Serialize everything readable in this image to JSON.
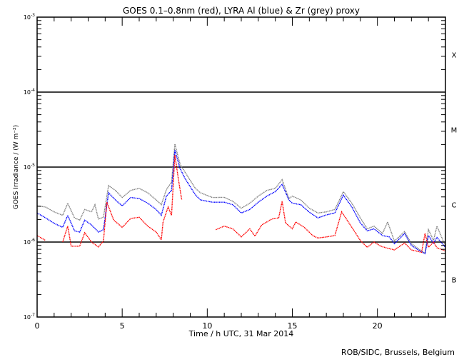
{
  "chart_data": {
    "type": "line",
    "title": "GOES 0.1–0.8nm (red), LYRA Al (blue) & Zr (grey) proxy",
    "xlabel": "Time / h UTC, 31 Mar 2014",
    "ylabel": "GOES Irradiance / (W m⁻²)",
    "xlim": [
      0,
      24
    ],
    "ylim": [
      1e-07,
      0.001
    ],
    "yscale": "log",
    "x_ticks": [
      "0",
      "5",
      "10",
      "15",
      "20"
    ],
    "x_tick_values": [
      0,
      5,
      10,
      15,
      20
    ],
    "y_ticks": [
      {
        "value": 0.001,
        "base": "10",
        "exp": "-3"
      },
      {
        "value": 0.0001,
        "base": "10",
        "exp": "-4"
      },
      {
        "value": 1e-05,
        "base": "10",
        "exp": "-5"
      },
      {
        "value": 1e-06,
        "base": "10",
        "exp": "-6"
      },
      {
        "value": 1e-07,
        "base": "10",
        "exp": "-7"
      }
    ],
    "reference_lines": [
      0.0001,
      1e-05,
      1e-06
    ],
    "flare_classes": [
      {
        "label": "X",
        "value": 0.000316
      },
      {
        "label": "M",
        "value": 3.16e-05
      },
      {
        "label": "C",
        "value": 3.16e-06
      },
      {
        "label": "B",
        "value": 3.16e-07
      }
    ],
    "credit": "ROB/SIDC, Brussels, Belgium",
    "series": [
      {
        "name": "Zr proxy (grey)",
        "color": "#808080",
        "points": [
          [
            0,
            3.04e-06
          ],
          [
            0.5,
            2.93e-06
          ],
          [
            1,
            2.53e-06
          ],
          [
            1.5,
            2.27e-06
          ],
          [
            1.8,
            3.3e-06
          ],
          [
            2.2,
            2.1e-06
          ],
          [
            2.5,
            1.96e-06
          ],
          [
            2.8,
            2.72e-06
          ],
          [
            3.2,
            2.53e-06
          ],
          [
            3.4,
            3.15e-06
          ],
          [
            3.6,
            2.03e-06
          ],
          [
            3.9,
            2.14e-06
          ],
          [
            4.2,
            5.67e-06
          ],
          [
            4.6,
            4.89e-06
          ],
          [
            5,
            3.93e-06
          ],
          [
            5.5,
            4.89e-06
          ],
          [
            6,
            5.2e-06
          ],
          [
            6.5,
            4.54e-06
          ],
          [
            7,
            3.65e-06
          ],
          [
            7.3,
            3.15e-06
          ],
          [
            7.6,
            5e-06
          ],
          [
            7.9,
            6.3e-06
          ],
          [
            8.1,
            2.03e-05
          ],
          [
            8.4,
            1.1e-05
          ],
          [
            8.7,
            8.5e-06
          ],
          [
            9.3,
            5.2e-06
          ],
          [
            9.6,
            4.54e-06
          ],
          [
            10.3,
            3.93e-06
          ],
          [
            11,
            3.95e-06
          ],
          [
            11.5,
            3.5e-06
          ],
          [
            12,
            2.83e-06
          ],
          [
            12.5,
            3.3e-06
          ],
          [
            13,
            4.1e-06
          ],
          [
            13.5,
            4.89e-06
          ],
          [
            14,
            5.2e-06
          ],
          [
            14.4,
            6.8e-06
          ],
          [
            14.8,
            3.8e-06
          ],
          [
            15,
            4.1e-06
          ],
          [
            15.5,
            3.65e-06
          ],
          [
            16,
            2.83e-06
          ],
          [
            16.5,
            2.44e-06
          ],
          [
            17,
            2.53e-06
          ],
          [
            17.5,
            2.72e-06
          ],
          [
            18,
            4.7e-06
          ],
          [
            18.5,
            3.3e-06
          ],
          [
            19,
            2.1e-06
          ],
          [
            19.4,
            1.5e-06
          ],
          [
            19.8,
            1.63e-06
          ],
          [
            20.3,
            1.3e-06
          ],
          [
            20.6,
            1.85e-06
          ],
          [
            21,
            1.03e-06
          ],
          [
            21.6,
            1.38e-06
          ],
          [
            22,
            9.5e-07
          ],
          [
            22.5,
            7.85e-07
          ],
          [
            22.8,
            7.1e-07
          ],
          [
            23,
            1.46e-06
          ],
          [
            23.3,
            1.05e-06
          ],
          [
            23.5,
            1.63e-06
          ],
          [
            24,
            8.8e-07
          ]
        ]
      },
      {
        "name": "LYRA Al proxy (blue)",
        "color": "#0000ff",
        "points": [
          [
            0,
            2.44e-06
          ],
          [
            0.5,
            2.1e-06
          ],
          [
            1,
            1.78e-06
          ],
          [
            1.5,
            1.57e-06
          ],
          [
            1.8,
            2.27e-06
          ],
          [
            2.2,
            1.41e-06
          ],
          [
            2.5,
            1.36e-06
          ],
          [
            2.8,
            1.96e-06
          ],
          [
            3.2,
            1.69e-06
          ],
          [
            3.6,
            1.36e-06
          ],
          [
            3.9,
            1.46e-06
          ],
          [
            4.2,
            4.54e-06
          ],
          [
            4.6,
            3.65e-06
          ],
          [
            5,
            3.04e-06
          ],
          [
            5.5,
            3.93e-06
          ],
          [
            6,
            3.8e-06
          ],
          [
            6.5,
            3.3e-06
          ],
          [
            7,
            2.72e-06
          ],
          [
            7.3,
            2.27e-06
          ],
          [
            7.6,
            4.1e-06
          ],
          [
            7.9,
            4.89e-06
          ],
          [
            8.1,
            1.69e-05
          ],
          [
            8.4,
            9.6e-06
          ],
          [
            8.7,
            7e-06
          ],
          [
            9.3,
            4.28e-06
          ],
          [
            9.6,
            3.65e-06
          ],
          [
            10.3,
            3.4e-06
          ],
          [
            11,
            3.4e-06
          ],
          [
            11.5,
            3.15e-06
          ],
          [
            12,
            2.44e-06
          ],
          [
            12.5,
            2.72e-06
          ],
          [
            13,
            3.4e-06
          ],
          [
            13.5,
            4.1e-06
          ],
          [
            14,
            4.7e-06
          ],
          [
            14.4,
            5.88e-06
          ],
          [
            14.8,
            3.65e-06
          ],
          [
            15,
            3.3e-06
          ],
          [
            15.5,
            3.15e-06
          ],
          [
            16,
            2.5e-06
          ],
          [
            16.5,
            2.1e-06
          ],
          [
            17,
            2.3e-06
          ],
          [
            17.5,
            2.44e-06
          ],
          [
            18,
            4.22e-06
          ],
          [
            18.5,
            2.93e-06
          ],
          [
            19,
            1.8e-06
          ],
          [
            19.4,
            1.41e-06
          ],
          [
            19.8,
            1.5e-06
          ],
          [
            20.3,
            1.22e-06
          ],
          [
            20.7,
            1.17e-06
          ],
          [
            21,
            9.5e-07
          ],
          [
            21.6,
            1.3e-06
          ],
          [
            22,
            9e-07
          ],
          [
            22.5,
            7.6e-07
          ],
          [
            22.8,
            7e-07
          ],
          [
            23,
            1.22e-06
          ],
          [
            23.3,
            9.7e-07
          ],
          [
            23.5,
            1.15e-06
          ],
          [
            24,
            8.5e-07
          ]
        ]
      },
      {
        "name": "GOES 0.1-0.8nm (red)",
        "color": "#ff0000",
        "points": [
          [
            0,
            1.22e-06
          ],
          [
            0.5,
            1.05e-06
          ],
          [
            1.5,
            1e-06
          ],
          [
            1.8,
            1.63e-06
          ],
          [
            2,
            8.8e-07
          ],
          [
            2.5,
            8.8e-07
          ],
          [
            2.8,
            1.33e-06
          ],
          [
            3.2,
            1e-06
          ],
          [
            3.6,
            8.6e-07
          ],
          [
            3.9,
            1.03e-06
          ],
          [
            4.1,
            3.4e-06
          ],
          [
            4.5,
            1.96e-06
          ],
          [
            5,
            1.57e-06
          ],
          [
            5.5,
            2.06e-06
          ],
          [
            6,
            2.14e-06
          ],
          [
            6.5,
            1.63e-06
          ],
          [
            7,
            1.36e-06
          ],
          [
            7.3,
            1.07e-06
          ],
          [
            7.4,
            1.85e-06
          ],
          [
            7.7,
            2.93e-06
          ],
          [
            7.9,
            2.27e-06
          ],
          [
            8.1,
            1.45e-05
          ],
          [
            8.3,
            7e-06
          ],
          [
            8.5,
            3.65e-06
          ],
          [
            9.6,
            1.85e-06
          ],
          [
            10.5,
            1.46e-06
          ],
          [
            11,
            1.63e-06
          ],
          [
            11.5,
            1.5e-06
          ],
          [
            12,
            1.17e-06
          ],
          [
            12.5,
            1.5e-06
          ],
          [
            12.8,
            1.2e-06
          ],
          [
            13.2,
            1.69e-06
          ],
          [
            13.8,
            2.03e-06
          ],
          [
            14.2,
            2.1e-06
          ],
          [
            14.4,
            3.5e-06
          ],
          [
            14.6,
            1.8e-06
          ],
          [
            15,
            1.5e-06
          ],
          [
            15.2,
            1.85e-06
          ],
          [
            15.7,
            1.57e-06
          ],
          [
            16.2,
            1.22e-06
          ],
          [
            16.5,
            1.13e-06
          ],
          [
            17,
            1.17e-06
          ],
          [
            17.5,
            1.22e-06
          ],
          [
            17.9,
            2.53e-06
          ],
          [
            18.5,
            1.57e-06
          ],
          [
            19,
            1.05e-06
          ],
          [
            19.4,
            8.5e-07
          ],
          [
            19.8,
            1e-06
          ],
          [
            20.2,
            8.8e-07
          ],
          [
            20.5,
            8.4e-07
          ],
          [
            21,
            7.85e-07
          ],
          [
            21.6,
            9.7e-07
          ],
          [
            22,
            7.85e-07
          ],
          [
            22.6,
            7.3e-07
          ],
          [
            22.8,
            1.3e-06
          ],
          [
            23,
            8.5e-07
          ],
          [
            23.3,
            1e-06
          ],
          [
            23.5,
            8.4e-07
          ],
          [
            24,
            7.6e-07
          ]
        ]
      }
    ]
  }
}
